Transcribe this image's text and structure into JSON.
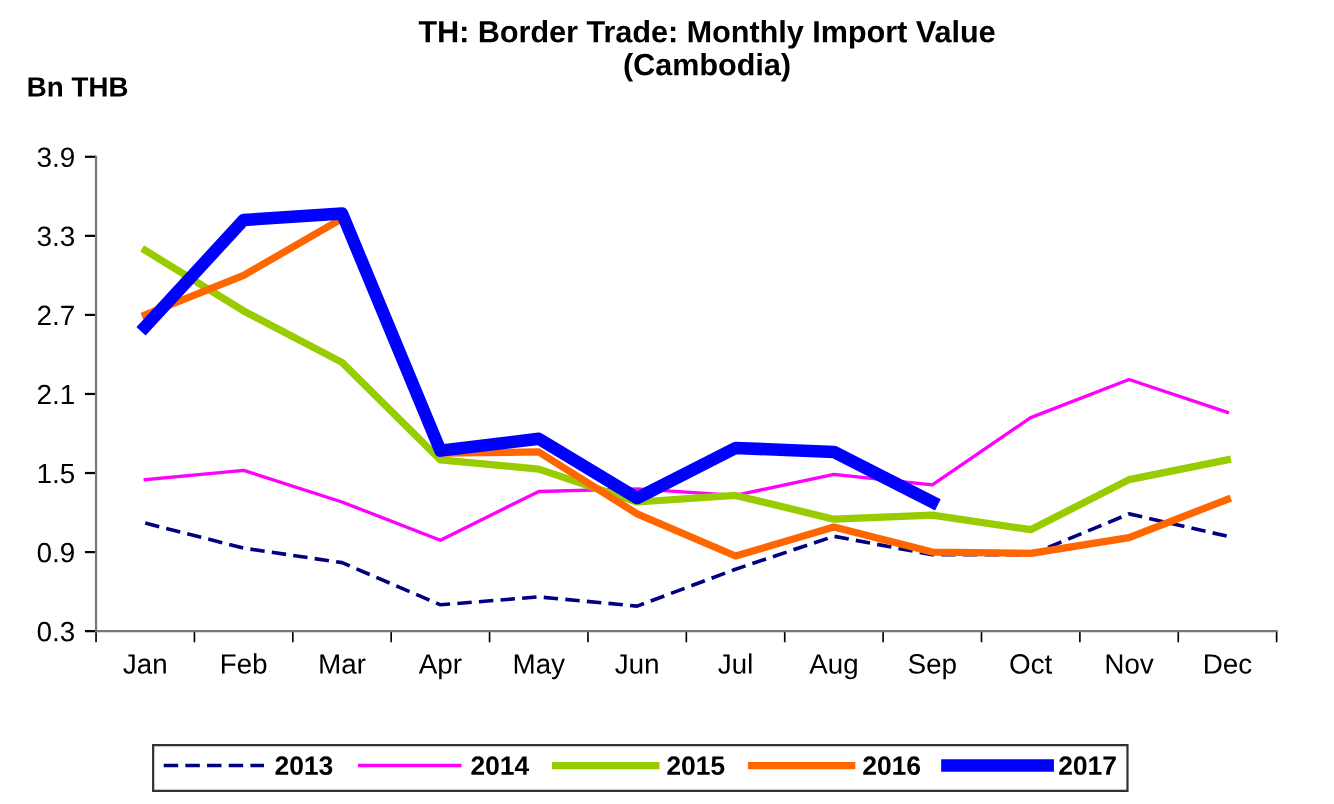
{
  "chart_data": {
    "type": "line",
    "title": "TH: Border Trade: Monthly Import Value\n(Cambodia)",
    "ylabel": "Bn THB",
    "categories": [
      "Jan",
      "Feb",
      "Mar",
      "Apr",
      "May",
      "Jun",
      "Jul",
      "Aug",
      "Sep",
      "Oct",
      "Nov",
      "Dec"
    ],
    "series": [
      {
        "name": "2013",
        "color": "#000080",
        "line_style": "dashed",
        "values": [
          1.12,
          0.93,
          0.82,
          0.5,
          0.56,
          0.49,
          0.77,
          1.02,
          0.88,
          0.88,
          1.19,
          1.02
        ]
      },
      {
        "name": "2014",
        "color": "#ff00ff",
        "values": [
          1.45,
          1.52,
          1.28,
          0.99,
          1.36,
          1.38,
          1.33,
          1.49,
          1.41,
          1.92,
          2.21,
          1.96
        ]
      },
      {
        "name": "2015",
        "color": "#99cc00",
        "values": [
          3.19,
          2.73,
          2.34,
          1.6,
          1.53,
          1.28,
          1.33,
          1.15,
          1.18,
          1.07,
          1.45,
          1.6
        ]
      },
      {
        "name": "2016",
        "color": "#ff6600",
        "values": [
          2.7,
          3.0,
          3.43,
          1.65,
          1.66,
          1.19,
          0.87,
          1.09,
          0.9,
          0.89,
          1.01,
          1.3
        ]
      },
      {
        "name": "2017",
        "color": "#0000ff",
        "values": [
          2.61,
          3.42,
          3.47,
          1.67,
          1.76,
          1.31,
          1.69,
          1.66,
          1.28,
          null,
          null,
          null
        ]
      }
    ],
    "ylim": [
      0.3,
      3.9
    ],
    "yticks": [
      0.3,
      0.9,
      1.5,
      2.1,
      2.7,
      3.3,
      3.9
    ],
    "line_style": "solid",
    "marker": "none",
    "grid": false,
    "legend": "bottom"
  }
}
